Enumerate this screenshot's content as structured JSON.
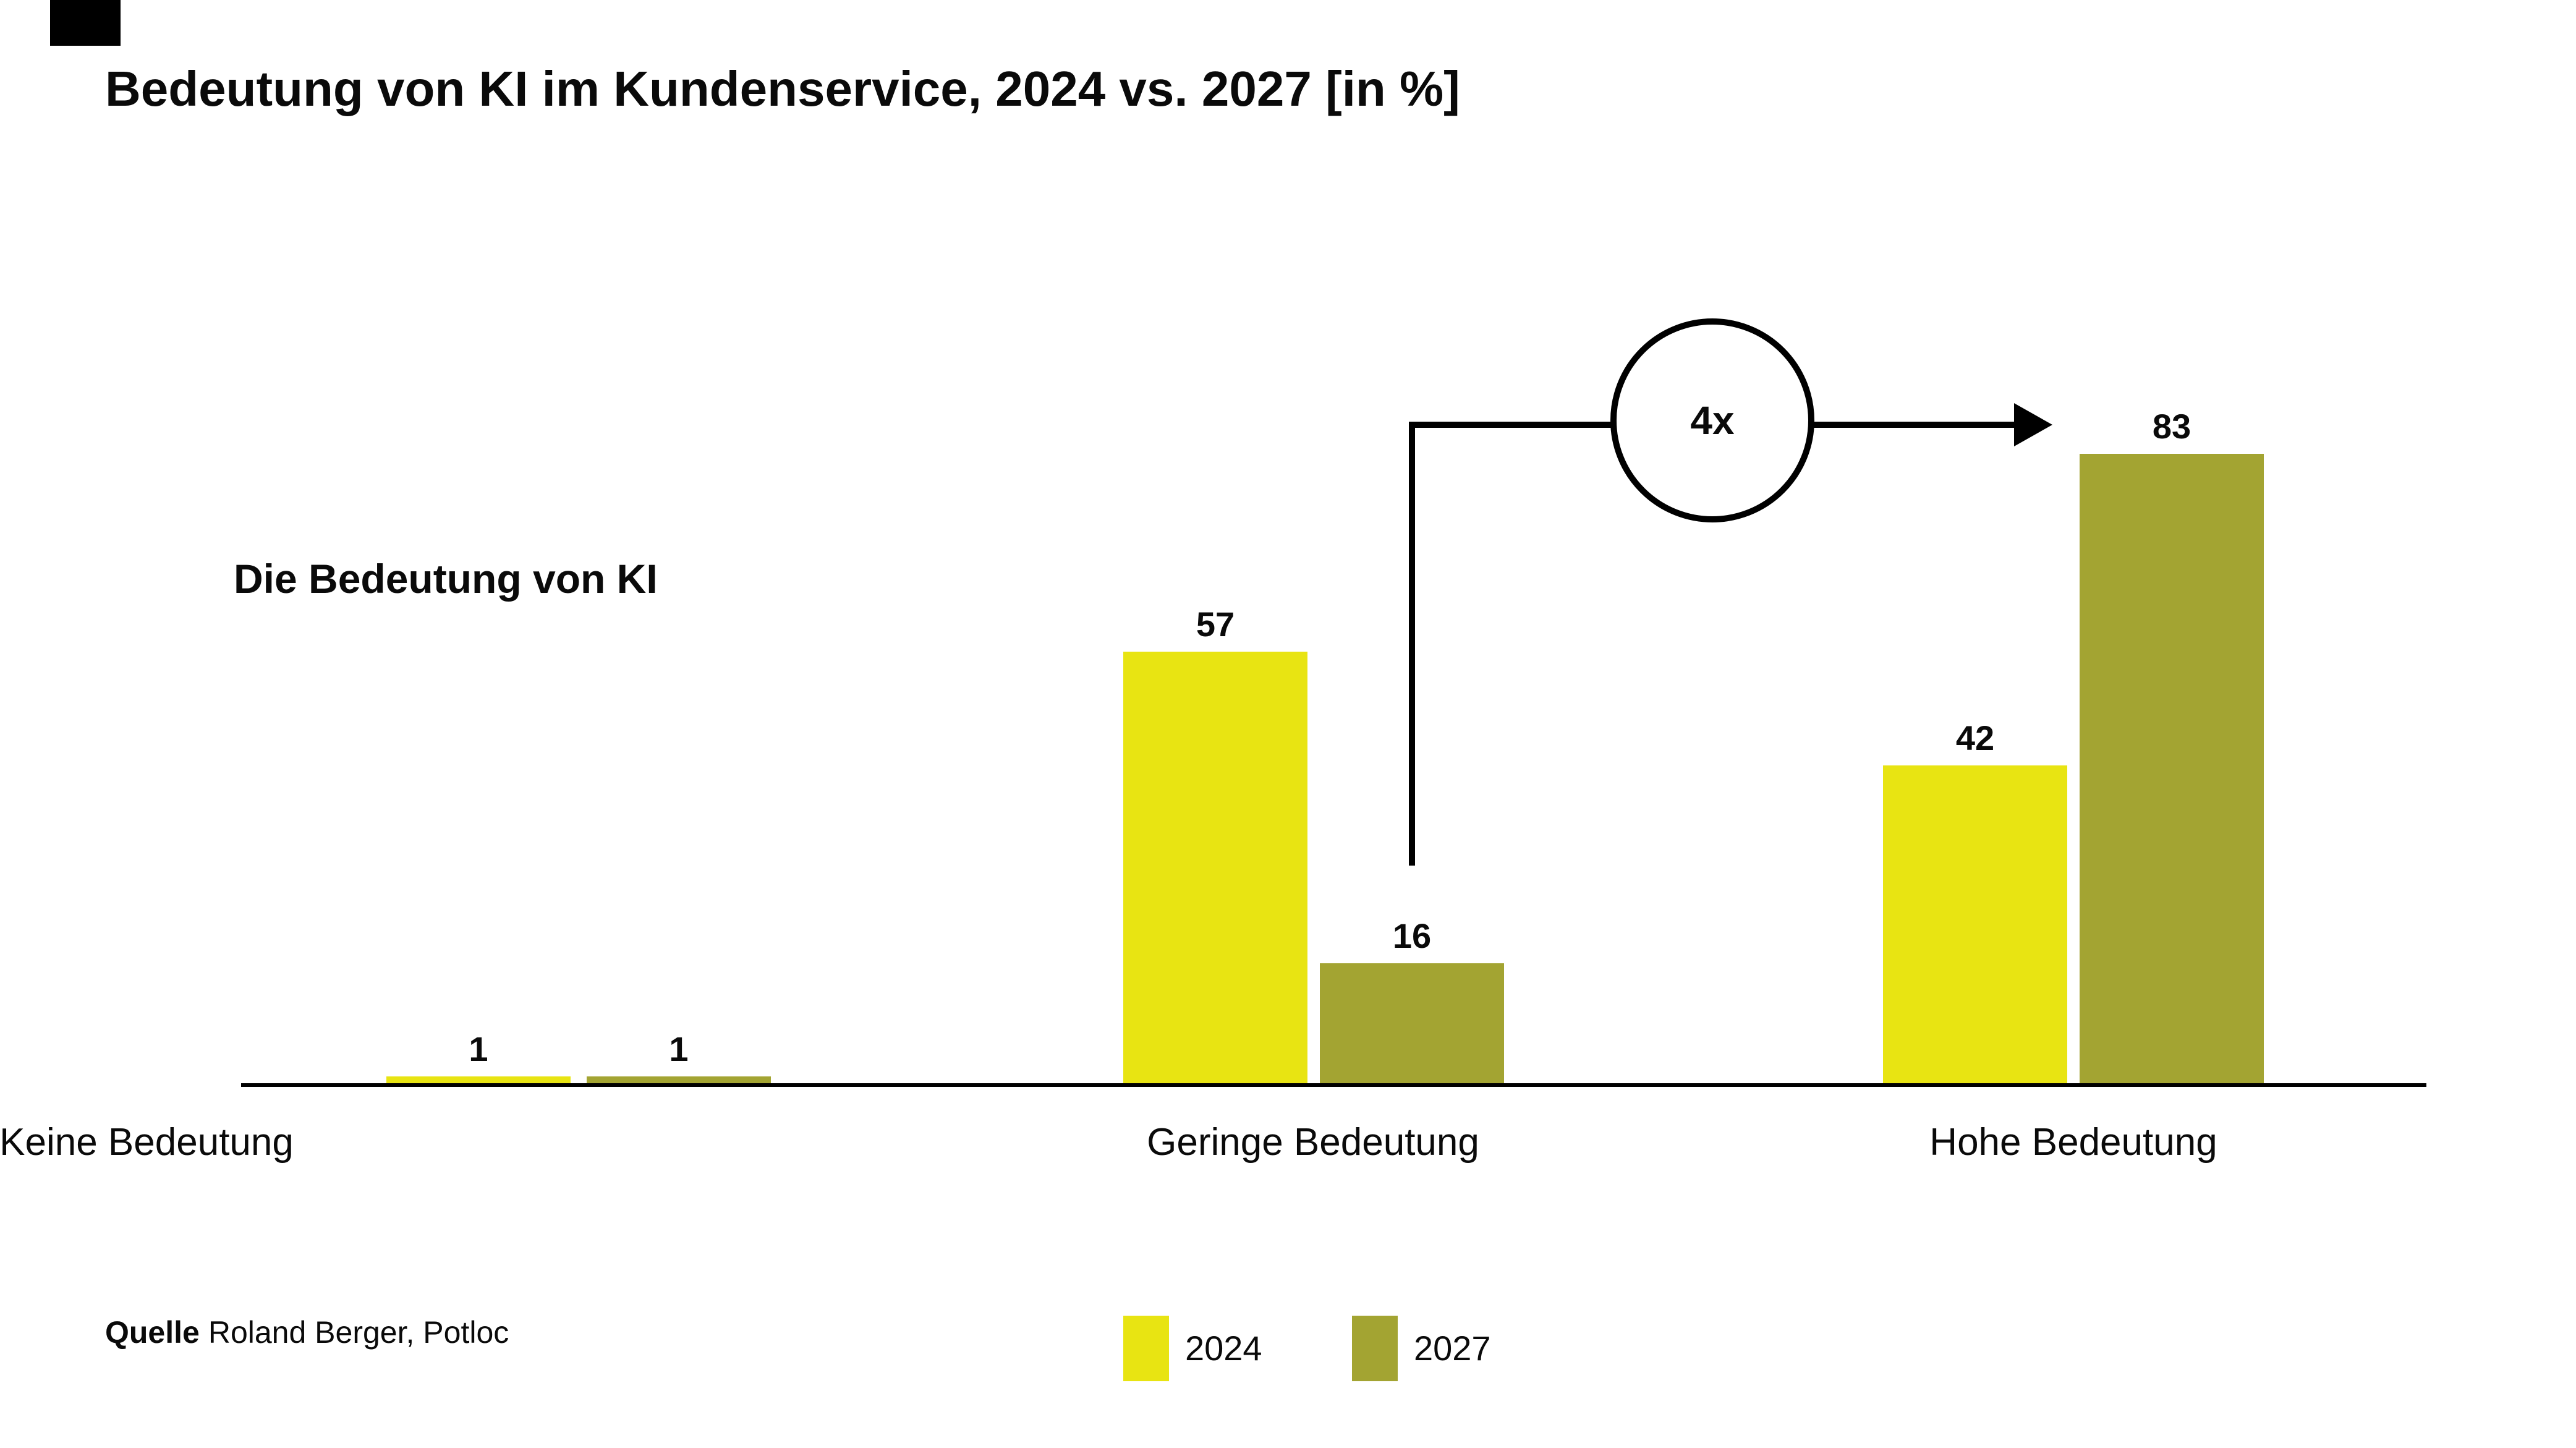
{
  "title": "Bedeutung von KI im Kundenservice, 2024 vs. 2027 [in %]",
  "chart_label": "Die Bedeutung von KI",
  "annotation": {
    "label": "4x"
  },
  "legend": {
    "items": [
      {
        "label": "2024",
        "color": "#e8e412"
      },
      {
        "label": "2027",
        "color": "#a3a432"
      }
    ]
  },
  "source": {
    "label": "Quelle",
    "text": "Roland Berger, Potloc"
  },
  "colors": {
    "series_2024": "#e8e412",
    "series_2027": "#a3a432",
    "axis": "#000000"
  },
  "chart_data": {
    "type": "bar",
    "title": "Bedeutung von KI im Kundenservice, 2024 vs. 2027 [in %]",
    "unit": "%",
    "categories": [
      "Keine Bedeutung",
      "Geringe Bedeutung",
      "Hohe Bedeutung"
    ],
    "series": [
      {
        "name": "2024",
        "color": "#e8e412",
        "values": [
          1,
          57,
          42
        ]
      },
      {
        "name": "2027",
        "color": "#a3a432",
        "values": [
          1,
          16,
          83
        ]
      }
    ],
    "value_labels": true,
    "ylim": [
      0,
      90
    ],
    "grid": false,
    "legend_position": "bottom",
    "annotation": {
      "label": "4x",
      "from": {
        "series": "2027",
        "category": "Geringe Bedeutung",
        "value": 16
      },
      "to": {
        "series": "2027",
        "category": "Hohe Bedeutung",
        "value": 83
      }
    }
  }
}
